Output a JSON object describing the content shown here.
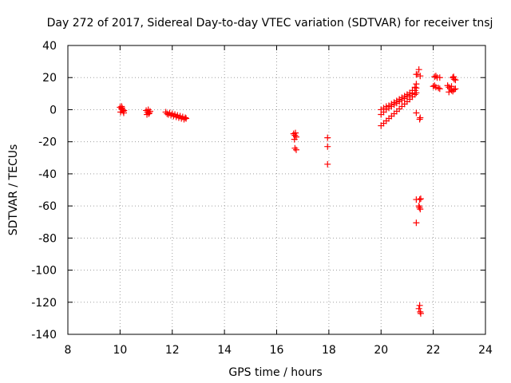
{
  "chart_data": {
    "type": "scatter",
    "title": "Day 272 of 2017, Sidereal Day-to-day VTEC variation (SDTVAR) for receiver tnsj",
    "xlabel": "GPS time / hours",
    "ylabel": "SDTVAR / TECUs",
    "xlim": [
      8,
      24
    ],
    "ylim": [
      -140,
      40
    ],
    "xticks": [
      8,
      10,
      12,
      14,
      16,
      18,
      20,
      22,
      24
    ],
    "yticks": [
      40,
      20,
      0,
      -20,
      -40,
      -60,
      -80,
      -100,
      -120,
      -140
    ],
    "grid": true,
    "marker": "+",
    "color": "#ff0000",
    "series": [
      {
        "name": "SDTVAR",
        "points": [
          [
            10.0,
            1.5
          ],
          [
            10.05,
            0.5
          ],
          [
            10.1,
            0.0
          ],
          [
            10.15,
            -0.5
          ],
          [
            10.02,
            -1.5
          ],
          [
            10.08,
            1.0
          ],
          [
            10.12,
            -1.0
          ],
          [
            10.06,
            2.0
          ],
          [
            10.14,
            -2.0
          ],
          [
            11.0,
            -0.5
          ],
          [
            11.05,
            -1.5
          ],
          [
            11.1,
            -2.5
          ],
          [
            11.15,
            -1.0
          ],
          [
            11.03,
            -3.0
          ],
          [
            11.08,
            0.0
          ],
          [
            11.12,
            -2.0
          ],
          [
            11.75,
            -1.5
          ],
          [
            11.8,
            -2.5
          ],
          [
            11.85,
            -3.0
          ],
          [
            11.9,
            -2.0
          ],
          [
            11.95,
            -3.5
          ],
          [
            12.0,
            -2.5
          ],
          [
            12.05,
            -4.0
          ],
          [
            12.1,
            -3.0
          ],
          [
            12.15,
            -4.5
          ],
          [
            12.2,
            -3.5
          ],
          [
            12.25,
            -5.0
          ],
          [
            12.3,
            -4.0
          ],
          [
            12.35,
            -5.5
          ],
          [
            12.4,
            -4.5
          ],
          [
            12.45,
            -6.0
          ],
          [
            12.5,
            -5.0
          ],
          [
            12.53,
            -5.5
          ],
          [
            16.65,
            -15.0
          ],
          [
            16.7,
            -16.0
          ],
          [
            16.75,
            -17.0
          ],
          [
            16.68,
            -18.5
          ],
          [
            16.72,
            -14.5
          ],
          [
            16.7,
            -24.0
          ],
          [
            16.75,
            -25.0
          ],
          [
            17.95,
            -17.5
          ],
          [
            17.95,
            -23.0
          ],
          [
            17.95,
            -34.0
          ],
          [
            20.0,
            -10.0
          ],
          [
            20.1,
            -8.5
          ],
          [
            20.2,
            -7.0
          ],
          [
            20.3,
            -5.5
          ],
          [
            20.4,
            -4.0
          ],
          [
            20.5,
            -2.5
          ],
          [
            20.6,
            -1.0
          ],
          [
            20.7,
            0.5
          ],
          [
            20.8,
            2.0
          ],
          [
            20.9,
            3.5
          ],
          [
            21.0,
            5.0
          ],
          [
            21.1,
            6.5
          ],
          [
            21.2,
            8.0
          ],
          [
            21.3,
            9.5
          ],
          [
            21.35,
            10.5
          ],
          [
            20.0,
            -3.0
          ],
          [
            20.1,
            -1.5
          ],
          [
            20.2,
            0.0
          ],
          [
            20.3,
            1.0
          ],
          [
            20.4,
            2.0
          ],
          [
            20.5,
            3.0
          ],
          [
            20.6,
            4.0
          ],
          [
            20.7,
            5.0
          ],
          [
            20.8,
            6.0
          ],
          [
            20.9,
            7.0
          ],
          [
            21.0,
            8.0
          ],
          [
            21.1,
            9.0
          ],
          [
            21.2,
            10.0
          ],
          [
            21.3,
            12.0
          ],
          [
            21.35,
            13.5
          ],
          [
            20.0,
            0.0
          ],
          [
            20.1,
            1.0
          ],
          [
            20.2,
            2.0
          ],
          [
            20.3,
            2.5
          ],
          [
            20.4,
            3.5
          ],
          [
            20.5,
            4.5
          ],
          [
            20.6,
            5.5
          ],
          [
            20.7,
            6.5
          ],
          [
            20.8,
            7.5
          ],
          [
            20.9,
            8.5
          ],
          [
            21.0,
            9.5
          ],
          [
            21.1,
            10.5
          ],
          [
            21.2,
            12.0
          ],
          [
            21.3,
            14.0
          ],
          [
            21.35,
            16.0
          ],
          [
            21.35,
            -2.0
          ],
          [
            21.5,
            -5.0
          ],
          [
            21.48,
            -6.0
          ],
          [
            21.45,
            25.0
          ],
          [
            21.4,
            22.0
          ],
          [
            21.5,
            21.0
          ],
          [
            21.35,
            22.0
          ],
          [
            21.35,
            -56.0
          ],
          [
            21.48,
            -56.0
          ],
          [
            21.52,
            -55.5
          ],
          [
            21.45,
            -60.0
          ],
          [
            21.5,
            -62.0
          ],
          [
            21.47,
            -61.0
          ],
          [
            21.35,
            -70.5
          ],
          [
            21.48,
            -122.0
          ],
          [
            21.45,
            -124.0
          ],
          [
            21.5,
            -126.0
          ],
          [
            21.52,
            -127.0
          ],
          [
            22.05,
            20.5
          ],
          [
            22.15,
            20.0
          ],
          [
            22.25,
            20.0
          ],
          [
            22.1,
            21.0
          ],
          [
            22.0,
            14.5
          ],
          [
            22.1,
            14.0
          ],
          [
            22.2,
            13.5
          ],
          [
            22.25,
            13.0
          ],
          [
            22.05,
            15.0
          ],
          [
            22.55,
            15.0
          ],
          [
            22.6,
            14.0
          ],
          [
            22.65,
            13.0
          ],
          [
            22.7,
            12.0
          ],
          [
            22.75,
            11.5
          ],
          [
            22.8,
            12.5
          ],
          [
            22.85,
            13.0
          ],
          [
            22.6,
            11.0
          ],
          [
            22.7,
            14.5
          ],
          [
            22.75,
            20.0
          ],
          [
            22.8,
            19.0
          ],
          [
            22.85,
            18.5
          ],
          [
            22.78,
            20.5
          ]
        ]
      }
    ]
  }
}
